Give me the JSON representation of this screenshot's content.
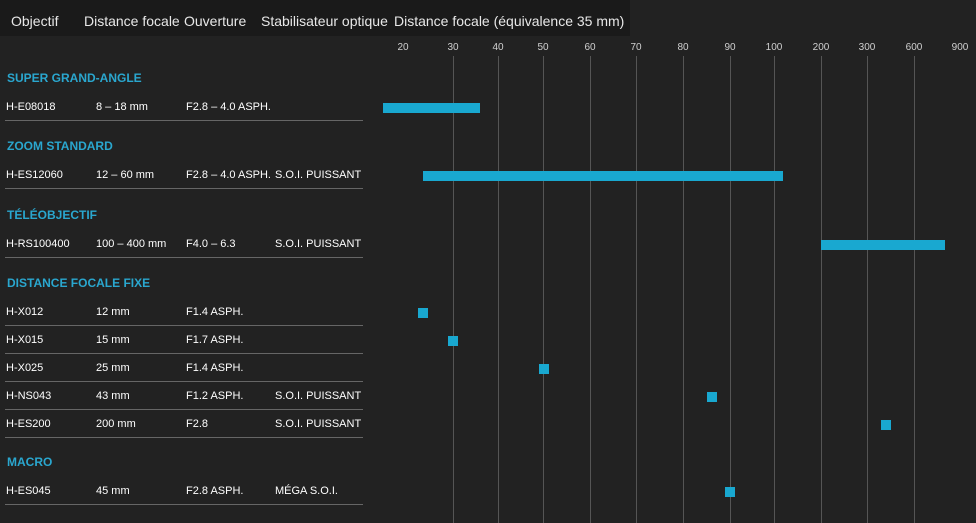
{
  "header": {
    "col_lens": "Objectif",
    "col_focal": "Distance focale",
    "col_aperture": "Ouverture",
    "col_stabilizer": "Stabilisateur optique",
    "col_chart": "Distance focale (équivalence 35 mm)"
  },
  "colors": {
    "accent": "#19a8d0",
    "section": "#2aa7cf",
    "background": "#222222"
  },
  "chart_data": {
    "type": "bar",
    "orientation": "horizontal-range",
    "title": "Distance focale (équivalence 35 mm)",
    "x_ticks": [
      "20",
      "30",
      "40",
      "50",
      "60",
      "70",
      "80",
      "90",
      "100",
      "200",
      "300",
      "600",
      "900"
    ],
    "xlim": [
      20,
      900
    ],
    "series": [
      {
        "name": "H-E08018",
        "range": [
          16,
          36
        ]
      },
      {
        "name": "H-ES12060",
        "range": [
          24,
          120
        ]
      },
      {
        "name": "H-RS100400",
        "range": [
          200,
          800
        ]
      },
      {
        "name": "H-X012",
        "range": [
          23,
          25
        ]
      },
      {
        "name": "H-X015",
        "range": [
          29,
          31
        ]
      },
      {
        "name": "H-X025",
        "range": [
          49,
          51
        ]
      },
      {
        "name": "H-NS043",
        "range": [
          85,
          87
        ]
      },
      {
        "name": "H-ES200",
        "range": [
          390,
          410
        ]
      },
      {
        "name": "H-ES045",
        "range": [
          89,
          91
        ]
      }
    ]
  },
  "sections": [
    {
      "title": "SUPER GRAND-ANGLE",
      "lenses": [
        {
          "model": "H-E08018",
          "focal": "8 – 18 mm",
          "aperture": "F2.8 – 4.0 ASPH.",
          "stabilizer": ""
        }
      ]
    },
    {
      "title": "ZOOM STANDARD",
      "lenses": [
        {
          "model": "H-ES12060",
          "focal": "12 – 60 mm",
          "aperture": "F2.8 – 4.0 ASPH.",
          "stabilizer": "S.O.I. PUISSANT"
        }
      ]
    },
    {
      "title": "TÉLÉOBJECTIF",
      "lenses": [
        {
          "model": "H-RS100400",
          "focal": "100 – 400 mm",
          "aperture": "F4.0 – 6.3",
          "stabilizer": "S.O.I. PUISSANT"
        }
      ]
    },
    {
      "title": "DISTANCE FOCALE FIXE",
      "lenses": [
        {
          "model": "H-X012",
          "focal": "12 mm",
          "aperture": "F1.4 ASPH.",
          "stabilizer": ""
        },
        {
          "model": "H-X015",
          "focal": "15 mm",
          "aperture": "F1.7 ASPH.",
          "stabilizer": ""
        },
        {
          "model": "H-X025",
          "focal": "25 mm",
          "aperture": "F1.4 ASPH.",
          "stabilizer": ""
        },
        {
          "model": "H-NS043",
          "focal": "43 mm",
          "aperture": "F1.2 ASPH.",
          "stabilizer": "S.O.I. PUISSANT"
        },
        {
          "model": "H-ES200",
          "focal": "200 mm",
          "aperture": "F2.8",
          "stabilizer": "S.O.I. PUISSANT"
        }
      ]
    },
    {
      "title": "MACRO",
      "lenses": [
        {
          "model": "H-ES045",
          "focal": "45 mm",
          "aperture": "F2.8 ASPH.",
          "stabilizer": "MÉGA S.O.I."
        }
      ]
    }
  ]
}
